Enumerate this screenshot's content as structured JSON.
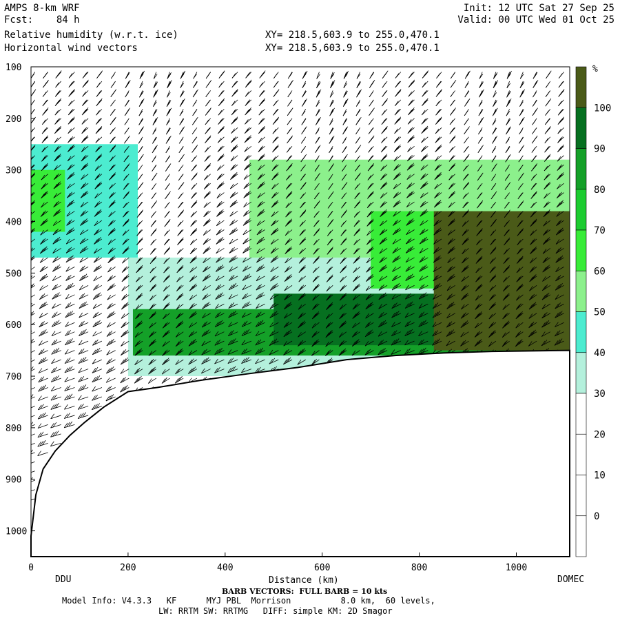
{
  "header": {
    "model": "AMPS 8-km WRF",
    "fcst": "Fcst:    84 h",
    "init": "Init: 12 UTC Sat 27 Sep 25",
    "valid": "Valid: 00 UTC Wed 01 Oct 25",
    "field1": "Relative humidity (w.r.t. ice)",
    "field2": "Horizontal wind vectors",
    "xy1": "XY= 218.5,603.9 to 255.0,470.1",
    "xy2": "XY= 218.5,603.9 to 255.0,470.1"
  },
  "footer": {
    "left_station": "DDU",
    "right_station": "DOMEC",
    "barb_note": "BARB VECTORS:  FULL BARB = 10 kts",
    "model_info": "Model Info: V4.3.3   KF      MYJ PBL  Morrison          8.0 km,  60 levels,",
    "physics": "LW: RRTM SW: RRTMG   DIFF: simple KM: 2D Smagor"
  },
  "chart_data": {
    "type": "heatmap",
    "title": "Relative humidity (w.r.t. ice)",
    "overlay": "Horizontal wind vectors",
    "xlabel": "Distance (km)",
    "ylabel": "",
    "xlim": [
      0,
      1110
    ],
    "ylim": [
      1050,
      100
    ],
    "x_ticks": [
      0,
      200,
      400,
      600,
      800,
      1000
    ],
    "y_ticks": [
      100,
      200,
      300,
      400,
      500,
      600,
      700,
      800,
      900,
      1000
    ],
    "terrain_profile": [
      {
        "x": 0,
        "p": 1010
      },
      {
        "x": 10,
        "p": 930
      },
      {
        "x": 25,
        "p": 880
      },
      {
        "x": 50,
        "p": 845
      },
      {
        "x": 80,
        "p": 815
      },
      {
        "x": 110,
        "p": 790
      },
      {
        "x": 150,
        "p": 760
      },
      {
        "x": 200,
        "p": 730
      },
      {
        "x": 260,
        "p": 722
      },
      {
        "x": 350,
        "p": 708
      },
      {
        "x": 450,
        "p": 695
      },
      {
        "x": 550,
        "p": 683
      },
      {
        "x": 650,
        "p": 668
      },
      {
        "x": 750,
        "p": 660
      },
      {
        "x": 850,
        "p": 655
      },
      {
        "x": 950,
        "p": 652
      },
      {
        "x": 1110,
        "p": 650
      }
    ],
    "colorbar": {
      "unit": "%",
      "labels": [
        0,
        10,
        20,
        30,
        40,
        50,
        60,
        70,
        80,
        90,
        100
      ],
      "colors": [
        "#ffffff",
        "#ffffff",
        "#ffffff",
        "#ffffff",
        "#b4f0dc",
        "#4cecd0",
        "#8cf08c",
        "#38ec38",
        "#1ccc30",
        "#14a028",
        "#067020",
        "#4a5a18"
      ]
    },
    "rh_field": {
      "description_levels": [
        0,
        10,
        20,
        30,
        40,
        50,
        60,
        70,
        80,
        90,
        100
      ],
      "regions": [
        {
          "x0": 0,
          "x1": 220,
          "p0": 250,
          "p1": 470,
          "rh": 45
        },
        {
          "x0": 0,
          "x1": 70,
          "p0": 300,
          "p1": 420,
          "rh": 65
        },
        {
          "x0": 200,
          "x1": 1110,
          "p0": 470,
          "p1": 700,
          "rh": 35
        },
        {
          "x0": 450,
          "x1": 1110,
          "p0": 280,
          "p1": 470,
          "rh": 50
        },
        {
          "x0": 700,
          "x1": 1110,
          "p0": 380,
          "p1": 530,
          "rh": 65
        },
        {
          "x0": 210,
          "x1": 1110,
          "p0": 570,
          "p1": 660,
          "rh": 80
        },
        {
          "x0": 500,
          "x1": 1110,
          "p0": 540,
          "p1": 640,
          "rh": 95
        },
        {
          "x0": 830,
          "x1": 1110,
          "p0": 380,
          "p1": 650,
          "rh": 102
        }
      ]
    },
    "wind_barbs": {
      "x_columns": [
        8,
        35,
        62,
        90,
        118,
        146,
        174,
        202,
        230,
        258,
        286,
        314,
        342,
        370,
        398,
        426,
        454,
        482,
        510,
        538,
        566,
        594,
        622,
        650,
        678,
        706,
        734,
        762,
        790,
        818,
        846,
        874,
        902,
        930,
        958,
        986,
        1014,
        1042,
        1070,
        1098
      ],
      "p_step": 18,
      "units": "kts"
    }
  }
}
